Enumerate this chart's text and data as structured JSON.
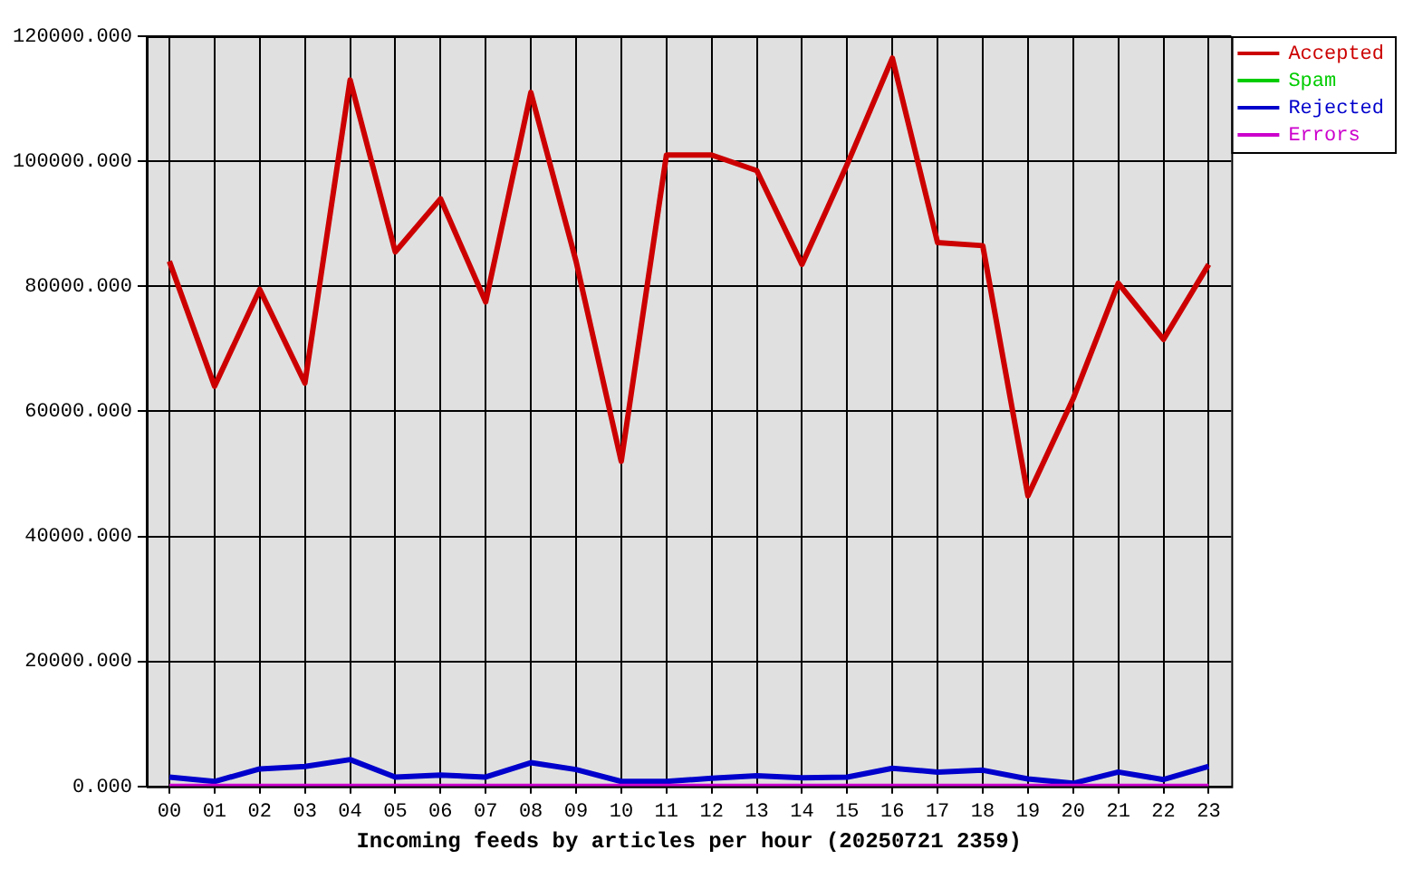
{
  "chart_data": {
    "type": "line",
    "xlabel": "Incoming feeds by articles per hour (20250721 2359)",
    "categories": [
      "00",
      "01",
      "02",
      "03",
      "04",
      "05",
      "06",
      "07",
      "08",
      "09",
      "10",
      "11",
      "12",
      "13",
      "14",
      "15",
      "16",
      "17",
      "18",
      "19",
      "20",
      "21",
      "22",
      "23"
    ],
    "series": [
      {
        "name": "Accepted",
        "color": "#cc0000",
        "values": [
          84000,
          64000,
          79500,
          64500,
          113000,
          85500,
          94000,
          77500,
          111000,
          84000,
          52000,
          101000,
          101000,
          98500,
          83500,
          99500,
          116500,
          87000,
          86500,
          46500,
          62000,
          80500,
          71500,
          83500
        ]
      },
      {
        "name": "Spam",
        "color": "#00cc00",
        "values": [
          null,
          null,
          null,
          null,
          null,
          null,
          null,
          null,
          null,
          null,
          null,
          null,
          null,
          null,
          null,
          null,
          null,
          null,
          null,
          null,
          null,
          null,
          null,
          null
        ]
      },
      {
        "name": "Rejected",
        "color": "#0000cc",
        "values": [
          1500,
          800,
          2800,
          3200,
          4300,
          1500,
          1800,
          1500,
          3800,
          2700,
          800,
          800,
          1300,
          1700,
          1400,
          1500,
          2900,
          2300,
          2600,
          1200,
          500,
          2300,
          1100,
          3200
        ]
      },
      {
        "name": "Errors",
        "color": "#cc00cc",
        "values": [
          0,
          0,
          0,
          0,
          0,
          0,
          0,
          0,
          0,
          0,
          0,
          0,
          0,
          0,
          0,
          0,
          0,
          0,
          0,
          0,
          0,
          0,
          0,
          0
        ]
      }
    ],
    "ylim": [
      0,
      120000
    ],
    "yticks": [
      {
        "value": 0,
        "label": "0.000"
      },
      {
        "value": 20000,
        "label": "20000.000"
      },
      {
        "value": 40000,
        "label": "40000.000"
      },
      {
        "value": 60000,
        "label": "60000.000"
      },
      {
        "value": 80000,
        "label": "80000.000"
      },
      {
        "value": 100000,
        "label": "100000.000"
      },
      {
        "value": 120000,
        "label": "120000.000"
      }
    ],
    "grid": true,
    "legend": "top right",
    "marker": "none",
    "line_style": "solid"
  }
}
